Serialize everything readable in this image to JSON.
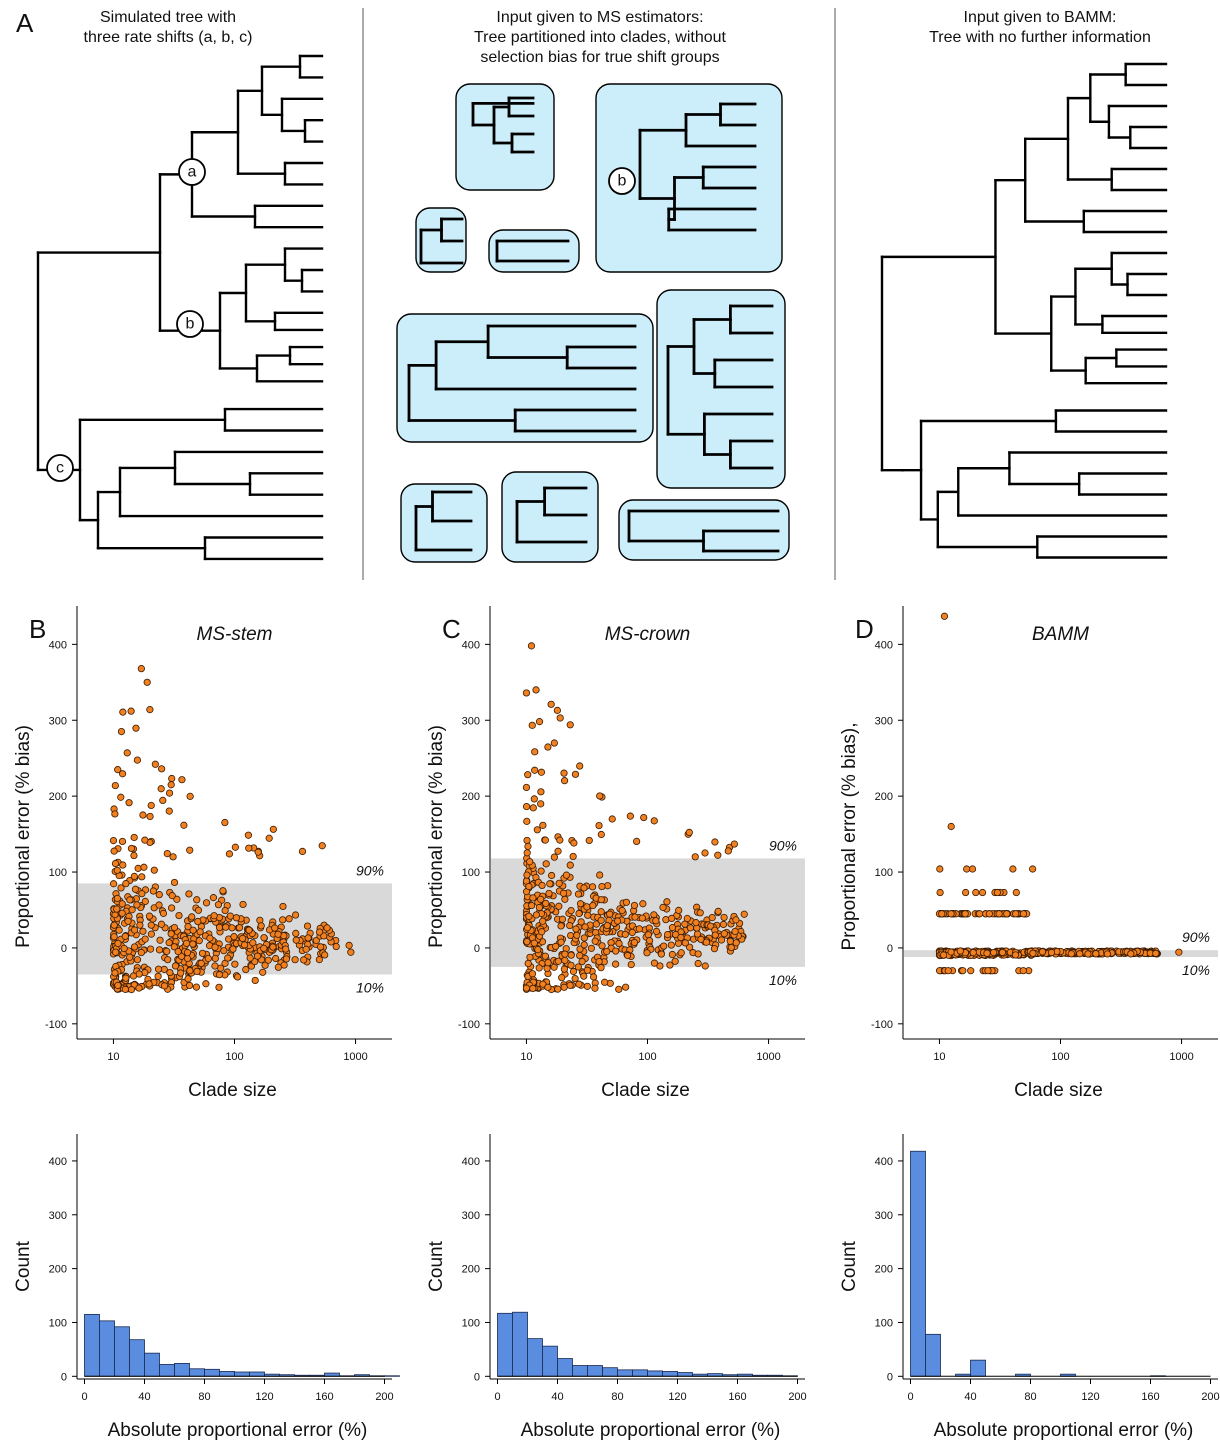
{
  "panel_a": {
    "letter": "A",
    "col1_title": [
      "Simulated tree with",
      "three rate shifts (a, b, c)"
    ],
    "col2_title": [
      "Input given to MS estimators:",
      "Tree partitioned into clades, without",
      "selection bias for true shift groups"
    ],
    "col3_title": [
      "Input given to BAMM:",
      "Tree with no further information"
    ],
    "shift_labels": [
      "a",
      "b",
      "c"
    ],
    "clade_fill": "#cceefa"
  },
  "chart_data": [
    {
      "type": "scatter",
      "panel": "B",
      "title": "MS-stem",
      "xlabel": "Clade size",
      "ylabel": "Proportional error (% bias)",
      "xscale": "log",
      "xlim": [
        5,
        2000
      ],
      "ylim": [
        -120,
        440
      ],
      "xticks": [
        "10",
        "100",
        "1000"
      ],
      "yticks": [
        "-100",
        "0",
        "100",
        "200",
        "300",
        "400"
      ],
      "band": {
        "low": -35,
        "high": 85,
        "low_label": "10%",
        "high_label": "90%"
      },
      "point_color": "#f08020",
      "n_points": 560
    },
    {
      "type": "scatter",
      "panel": "C",
      "title": "MS-crown",
      "xlabel": "Clade size",
      "ylabel": "Proportional error (% bias)",
      "xscale": "log",
      "xlim": [
        5,
        2000
      ],
      "ylim": [
        -120,
        440
      ],
      "xticks": [
        "10",
        "100",
        "1000"
      ],
      "yticks": [
        "-100",
        "0",
        "100",
        "200",
        "300",
        "400"
      ],
      "band": {
        "low": -25,
        "high": 118,
        "low_label": "10%",
        "high_label": "90%"
      },
      "point_color": "#f08020",
      "n_points": 560
    },
    {
      "type": "scatter",
      "panel": "D",
      "title": "BAMM",
      "xlabel": "Clade size",
      "ylabel": "Proportional error (% bias),",
      "xscale": "log",
      "xlim": [
        5,
        2000
      ],
      "ylim": [
        -120,
        440
      ],
      "xticks": [
        "10",
        "100",
        "1000"
      ],
      "yticks": [
        "-100",
        "0",
        "100",
        "200",
        "300",
        "400"
      ],
      "band": {
        "low": -12,
        "high": -3,
        "low_label": "10%",
        "high_label": "90%"
      },
      "point_color": "#f08020",
      "n_points": 560
    },
    {
      "type": "bar",
      "panel": "B-hist",
      "xlabel": "Absolute proportional error (%)",
      "ylabel": "Count",
      "bin_width": 10,
      "bin_start": 0,
      "values": [
        115,
        103,
        92,
        68,
        43,
        22,
        24,
        14,
        13,
        9,
        8,
        8,
        4,
        3,
        2,
        2,
        6,
        1,
        3,
        1,
        1
      ],
      "xlim": [
        -5,
        205
      ],
      "ylim": [
        -5,
        450
      ],
      "xticks": [
        "0",
        "40",
        "80",
        "120",
        "160",
        "200"
      ],
      "yticks": [
        "0",
        "100",
        "200",
        "300",
        "400"
      ],
      "bar_color": "#5a8de0"
    },
    {
      "type": "bar",
      "panel": "C-hist",
      "xlabel": "Absolute proportional error (%)",
      "ylabel": "Count",
      "bin_width": 10,
      "bin_start": 0,
      "values": [
        117,
        119,
        70,
        56,
        33,
        20,
        20,
        16,
        12,
        12,
        10,
        9,
        7,
        4,
        5,
        3,
        4,
        2,
        2,
        1
      ],
      "xlim": [
        -5,
        205
      ],
      "ylim": [
        -5,
        450
      ],
      "xticks": [
        "0",
        "40",
        "80",
        "120",
        "160",
        "200"
      ],
      "yticks": [
        "0",
        "100",
        "200",
        "300",
        "400"
      ],
      "bar_color": "#5a8de0"
    },
    {
      "type": "bar",
      "panel": "D-hist",
      "xlabel": "Absolute proportional error (%)",
      "ylabel": "Count",
      "bin_width": 10,
      "bin_start": 0,
      "values": [
        418,
        78,
        0,
        4,
        30,
        0,
        0,
        4,
        0,
        0,
        4,
        0,
        0,
        0,
        0,
        0,
        1
      ],
      "xlim": [
        -5,
        205
      ],
      "ylim": [
        -5,
        450
      ],
      "xticks": [
        "0",
        "40",
        "80",
        "120",
        "160",
        "200"
      ],
      "yticks": [
        "0",
        "100",
        "200",
        "300",
        "400"
      ],
      "bar_color": "#5a8de0"
    }
  ]
}
